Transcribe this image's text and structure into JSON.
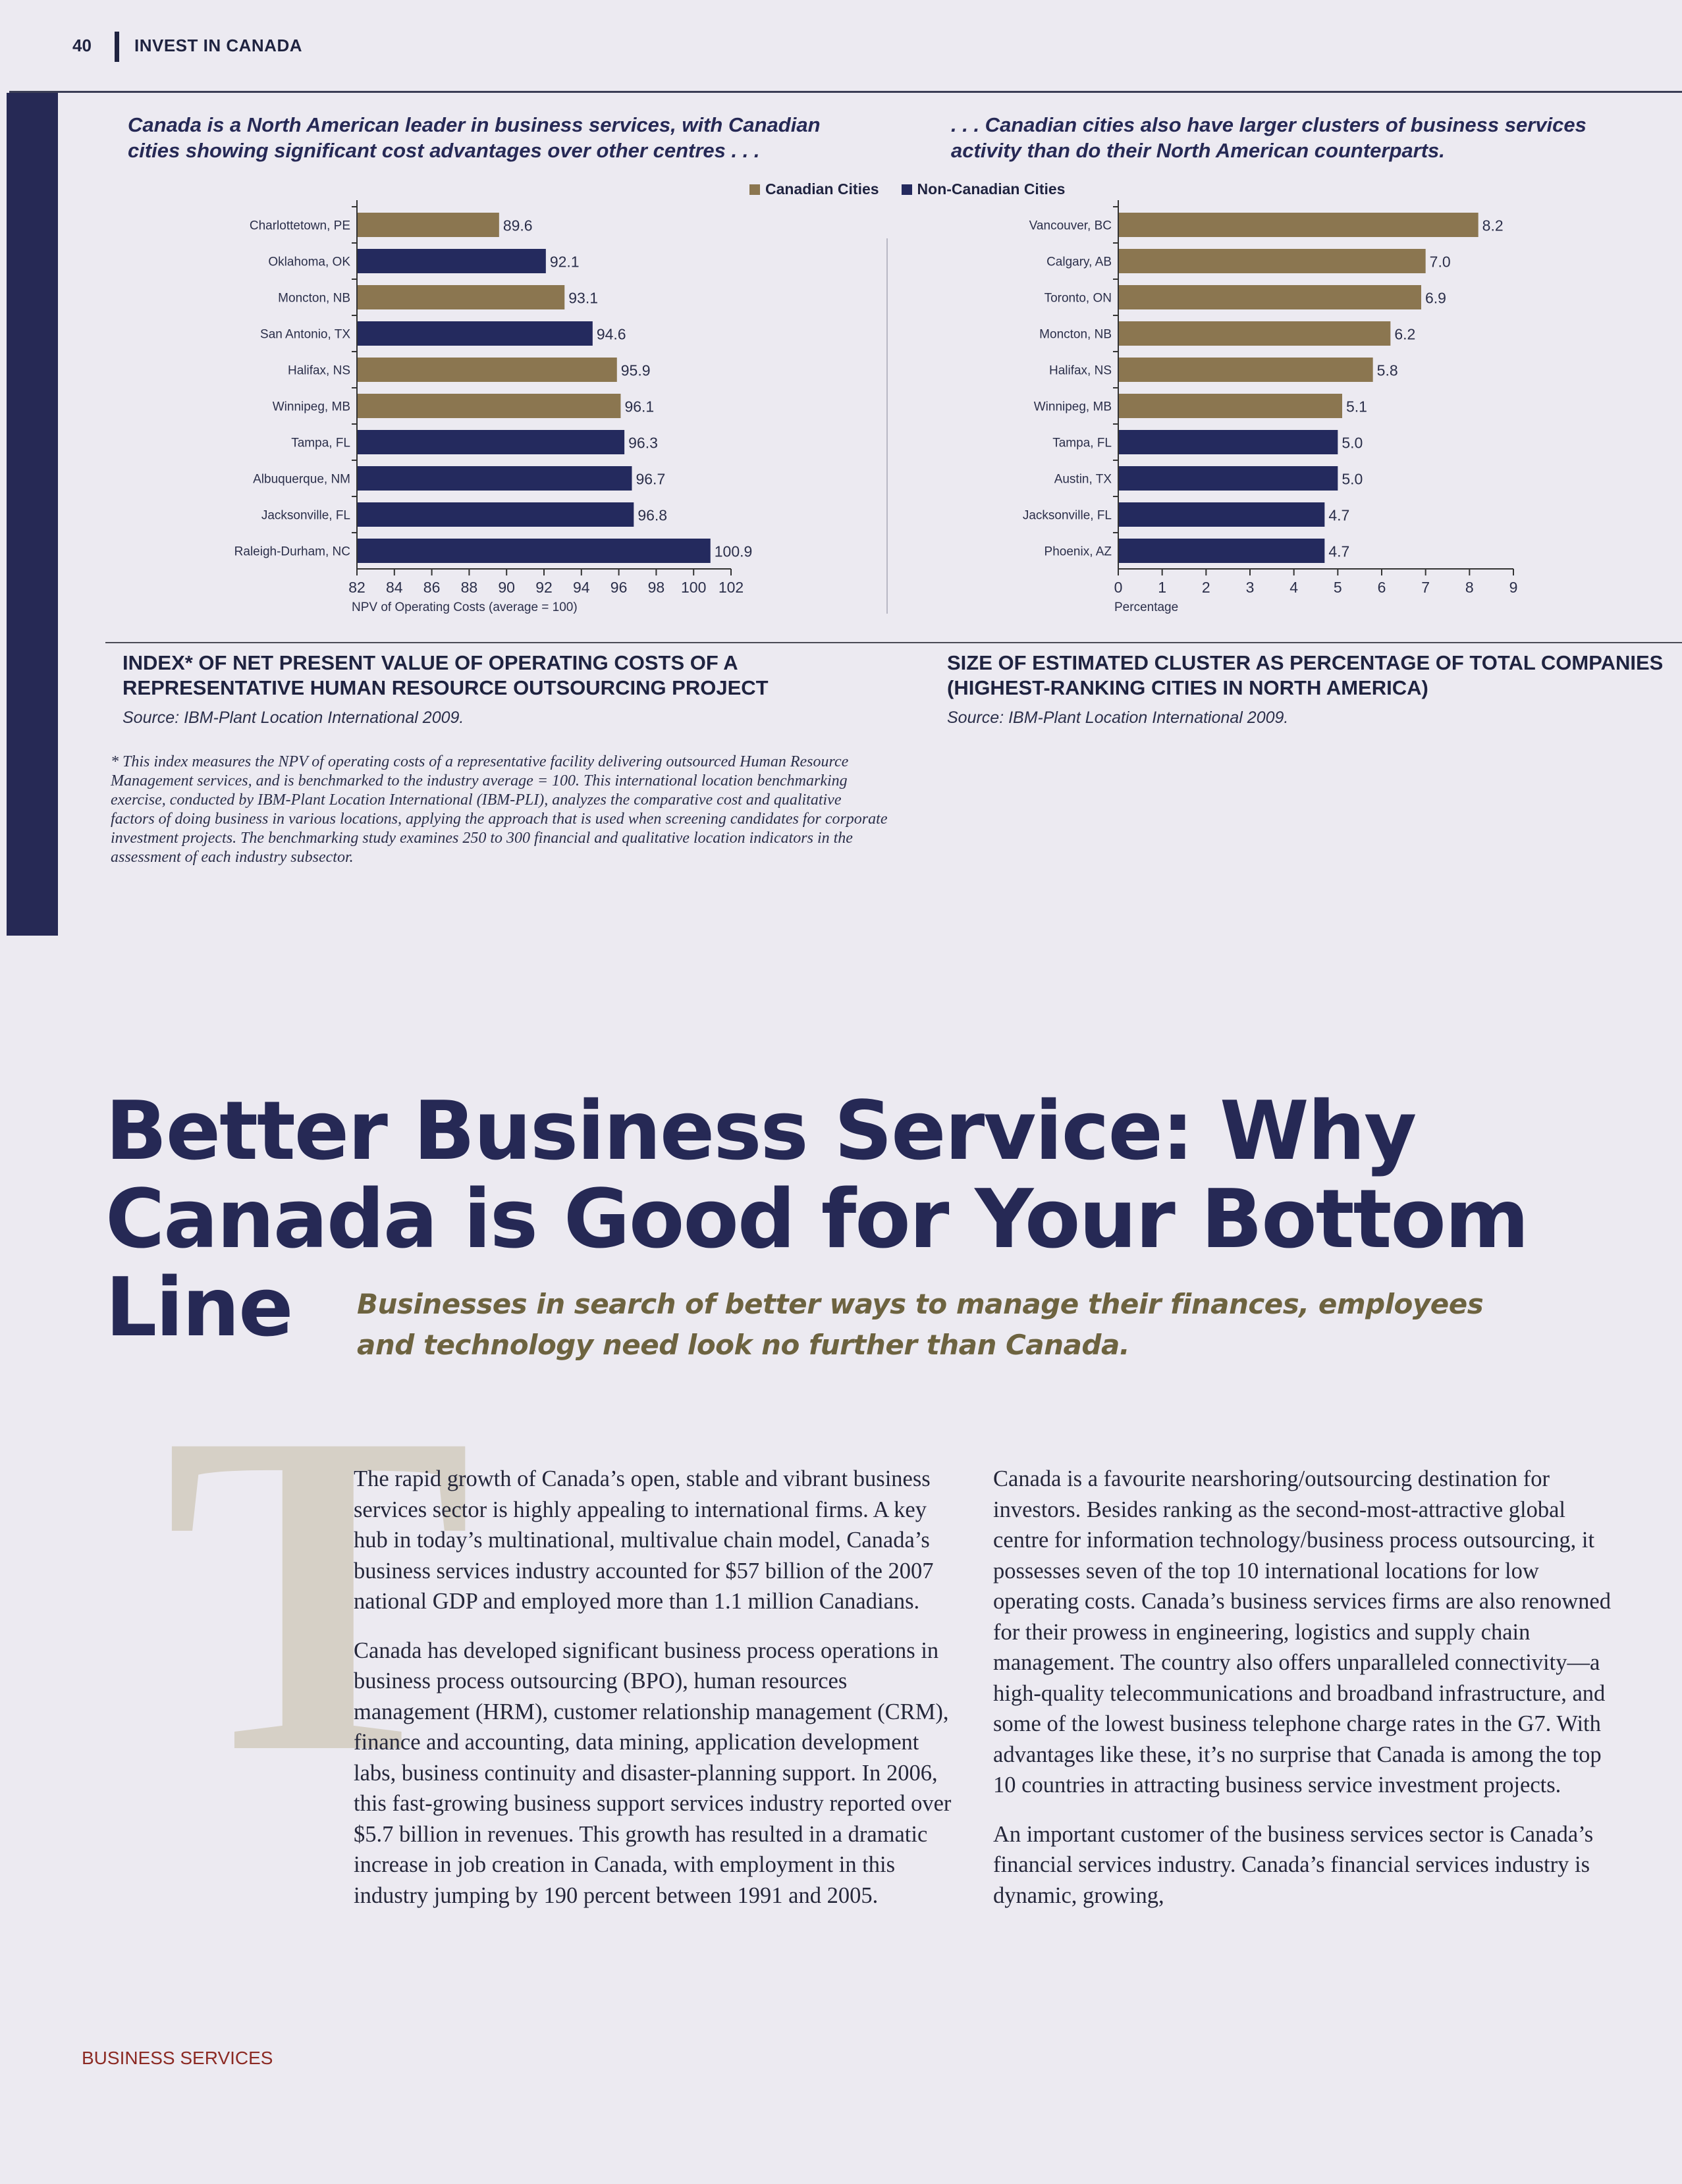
{
  "header": {
    "page_number": "40",
    "section": "INVEST IN CANADA"
  },
  "intro": {
    "left": "Canada is a North American leader in business services, with Canadian cities showing significant cost advantages over other centres . . .",
    "right": ". . . Canadian cities also have larger clusters of business services activity than do their North American counterparts."
  },
  "legend": {
    "canadian": "Canadian Cities",
    "non_canadian": "Non-Canadian Cities"
  },
  "colors": {
    "canadian": "#8b7650",
    "non_canadian": "#242a5e",
    "accent": "#262955",
    "footer": "#8c2a24"
  },
  "chart_data": [
    {
      "type": "bar",
      "orientation": "horizontal",
      "title": "INDEX* OF NET PRESENT VALUE OF OPERATING COSTS OF A REPRESENTATIVE HUMAN RESOURCE OUTSOURCING PROJECT",
      "source": "Source: IBM-Plant Location International 2009.",
      "xlabel": "NPV of Operating Costs (average = 100)",
      "xlim": [
        82,
        102
      ],
      "xticks": [
        82,
        84,
        86,
        88,
        90,
        92,
        94,
        96,
        98,
        100,
        102
      ],
      "categories": [
        "Charlottetown, PE",
        "Oklahoma, OK",
        "Moncton, NB",
        "San Antonio, TX",
        "Halifax, NS",
        "Winnipeg, MB",
        "Tampa, FL",
        "Albuquerque, NM",
        "Jacksonville, FL",
        "Raleigh-Durham, NC"
      ],
      "values": [
        89.6,
        92.1,
        93.1,
        94.6,
        95.9,
        96.1,
        96.3,
        96.7,
        96.8,
        100.9
      ],
      "value_labels": [
        "89.6",
        "92.1",
        "93.1",
        "94.6",
        "95.9",
        "96.1",
        "96.3",
        "96.7",
        "96.8",
        "100.9"
      ],
      "group": [
        "canadian",
        "non_canadian",
        "canadian",
        "non_canadian",
        "canadian",
        "canadian",
        "non_canadian",
        "non_canadian",
        "non_canadian",
        "non_canadian"
      ]
    },
    {
      "type": "bar",
      "orientation": "horizontal",
      "title": "SIZE OF ESTIMATED CLUSTER AS PERCENTAGE OF TOTAL COMPANIES (HIGHEST-RANKING CITIES IN NORTH AMERICA)",
      "source": "Source: IBM-Plant Location International 2009.",
      "xlabel": "Percentage",
      "xlim": [
        0,
        9
      ],
      "xticks": [
        0,
        1,
        2,
        3,
        4,
        5,
        6,
        7,
        8,
        9
      ],
      "categories": [
        "Vancouver, BC",
        "Calgary, AB",
        "Toronto, ON",
        "Moncton, NB",
        "Halifax, NS",
        "Winnipeg, MB",
        "Tampa, FL",
        "Austin, TX",
        "Jacksonville, FL",
        "Phoenix, AZ"
      ],
      "values": [
        8.2,
        7.0,
        6.9,
        6.2,
        5.8,
        5.1,
        5.0,
        5.0,
        4.7,
        4.7
      ],
      "value_labels": [
        "8.2",
        "7.0",
        "6.9",
        "6.2",
        "5.8",
        "5.1",
        "5.0",
        "5.0",
        "4.7",
        "4.7"
      ],
      "group": [
        "canadian",
        "canadian",
        "canadian",
        "canadian",
        "canadian",
        "canadian",
        "non_canadian",
        "non_canadian",
        "non_canadian",
        "non_canadian"
      ]
    }
  ],
  "footnote": "* This index measures the NPV of operating costs of a representative facility delivering outsourced Human Resource Management services, and is benchmarked to the industry average = 100. This international location benchmarking exercise, conducted by IBM-Plant Location International (IBM-PLI), analyzes the comparative cost and qualitative factors of doing business in various locations, applying the approach that is used when screening candidates for corporate investment projects. The benchmarking study examines 250 to 300 financial and qualitative location indicators in the assessment of each industry subsector.",
  "article": {
    "headline": "Better Business Service: Why Canada is Good for Your Bottom Line",
    "subhead": "Businesses in search of better ways to manage their finances, employees and technology need look no further than Canada.",
    "dropcap": "T",
    "left_paragraphs": [
      "The rapid growth of Canada’s open, stable and vibrant business services sector is highly appealing to international firms. A key hub in today’s multinational, multivalue chain model, Canada’s business services industry accounted for $57 billion of the 2007 national GDP and employed more than 1.1 million Canadians.",
      "Canada has developed significant business process operations in business process outsourcing (BPO), human resources management (HRM), customer relationship management (CRM), finance and accounting, data mining, application development labs, business continuity and disaster-planning support. In 2006, this fast-growing business support services industry reported over $5.7 billion in revenues. This growth has resulted in a dramatic increase in job creation in Canada, with employment in this industry jumping by 190 percent between 1991 and 2005."
    ],
    "right_paragraphs": [
      "Canada is a favourite nearshoring/outsourcing destination for investors. Besides ranking as the second-most-attractive global centre for information technology/business process outsourcing, it possesses seven of the top 10 international locations for low operating costs. Canada’s business services firms are also renowned for their prowess in engineering, logistics and supply chain management. The country also offers unparalleled connectivity—a high-quality telecommunications and broadband infrastructure, and some of the lowest business telephone charge rates in the G7. With advantages like these, it’s no surprise that Canada is among the top 10 countries in attracting business service investment projects.",
      "An important customer of the business services sector is Canada’s financial services industry. Canada’s financial services industry is dynamic, growing,"
    ]
  },
  "footer": {
    "section": "BUSINESS SERVICES"
  }
}
